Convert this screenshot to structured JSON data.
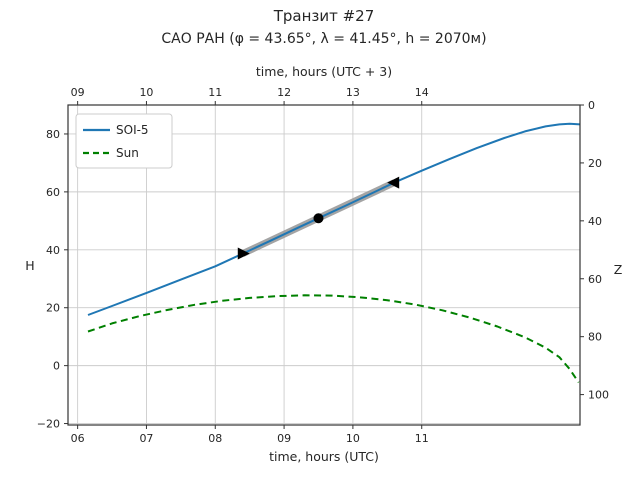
{
  "title": "Транзит #27",
  "subtitle": "САО РАН (φ = 43.65°, λ = 41.45°, h = 2070м)",
  "axes": {
    "bottom": {
      "label": "time, hours (UTC)",
      "tick_values": [
        6,
        7,
        8,
        9,
        10,
        11
      ],
      "tick_labels": [
        "06",
        "07",
        "08",
        "09",
        "10",
        "11"
      ]
    },
    "top": {
      "label": "time, hours (UTC + 3)",
      "offset_hours": 3,
      "tick_values": [
        9,
        10,
        11,
        12,
        13,
        14
      ],
      "tick_labels": [
        "09",
        "10",
        "11",
        "12",
        "13",
        "14"
      ]
    },
    "left": {
      "label": "H",
      "tick_values": [
        -20,
        0,
        20,
        40,
        60,
        80
      ],
      "tick_labels": [
        "−20",
        "0",
        "20",
        "40",
        "60",
        "80"
      ]
    },
    "right": {
      "label": "Z",
      "tick_values": [
        0,
        20,
        40,
        60,
        80,
        100
      ],
      "tick_labels": [
        "0",
        "20",
        "40",
        "60",
        "80",
        "100"
      ]
    }
  },
  "chart_data": {
    "type": "line",
    "title": "Транзит #27",
    "subtitle": "САО РАН (φ = 43.65°, λ = 41.45°, h = 2070м)",
    "xlabel_bottom": "time, hours (UTC)",
    "xlabel_top": "time, hours (UTC + 3)",
    "ylabel_left": "H",
    "ylabel_right": "Z",
    "xlim": [
      5.86,
      13.3
    ],
    "ylim": [
      -20.5,
      90
    ],
    "grid": true,
    "grid_color": "#cccccc",
    "legend_position": "upper left",
    "series": [
      {
        "name": "SOI-5",
        "color": "#1f77b4",
        "style": "solid",
        "points": [
          [
            6.15,
            17.5
          ],
          [
            6.5,
            20.6
          ],
          [
            7.0,
            25.1
          ],
          [
            7.5,
            29.7
          ],
          [
            8.0,
            34.3
          ],
          [
            8.4,
            38.7
          ],
          [
            8.8,
            43.1
          ],
          [
            9.2,
            47.6
          ],
          [
            9.5,
            50.9
          ],
          [
            9.9,
            55.3
          ],
          [
            10.3,
            59.8
          ],
          [
            10.6,
            63.2
          ],
          [
            11.0,
            67.3
          ],
          [
            11.4,
            71.3
          ],
          [
            11.8,
            75.1
          ],
          [
            12.2,
            78.6
          ],
          [
            12.5,
            80.9
          ],
          [
            12.8,
            82.6
          ],
          [
            13.0,
            83.3
          ],
          [
            13.15,
            83.5
          ],
          [
            13.3,
            83.3
          ]
        ]
      },
      {
        "name": "Sun",
        "color": "#008000",
        "style": "dashed",
        "points": [
          [
            6.15,
            11.8
          ],
          [
            6.5,
            14.6
          ],
          [
            6.9,
            17.1
          ],
          [
            7.3,
            19.2
          ],
          [
            7.7,
            21.0
          ],
          [
            8.1,
            22.4
          ],
          [
            8.5,
            23.4
          ],
          [
            8.9,
            24.0
          ],
          [
            9.3,
            24.3
          ],
          [
            9.7,
            24.2
          ],
          [
            10.1,
            23.6
          ],
          [
            10.5,
            22.6
          ],
          [
            10.9,
            21.1
          ],
          [
            11.3,
            19.1
          ],
          [
            11.7,
            16.6
          ],
          [
            12.1,
            13.5
          ],
          [
            12.5,
            9.8
          ],
          [
            12.8,
            6.2
          ],
          [
            13.0,
            2.9
          ],
          [
            13.15,
            -1.2
          ],
          [
            13.28,
            -5.8
          ]
        ]
      }
    ],
    "transit_overlay": {
      "band_color": "#9b9b9b",
      "marker_color": "#000000",
      "start": {
        "t": 8.4,
        "H": 38.7,
        "marker": "triangle-right"
      },
      "mid": {
        "t": 9.5,
        "H": 50.9,
        "marker": "circle"
      },
      "end": {
        "t": 10.6,
        "H": 63.2,
        "marker": "triangle-left"
      }
    }
  }
}
